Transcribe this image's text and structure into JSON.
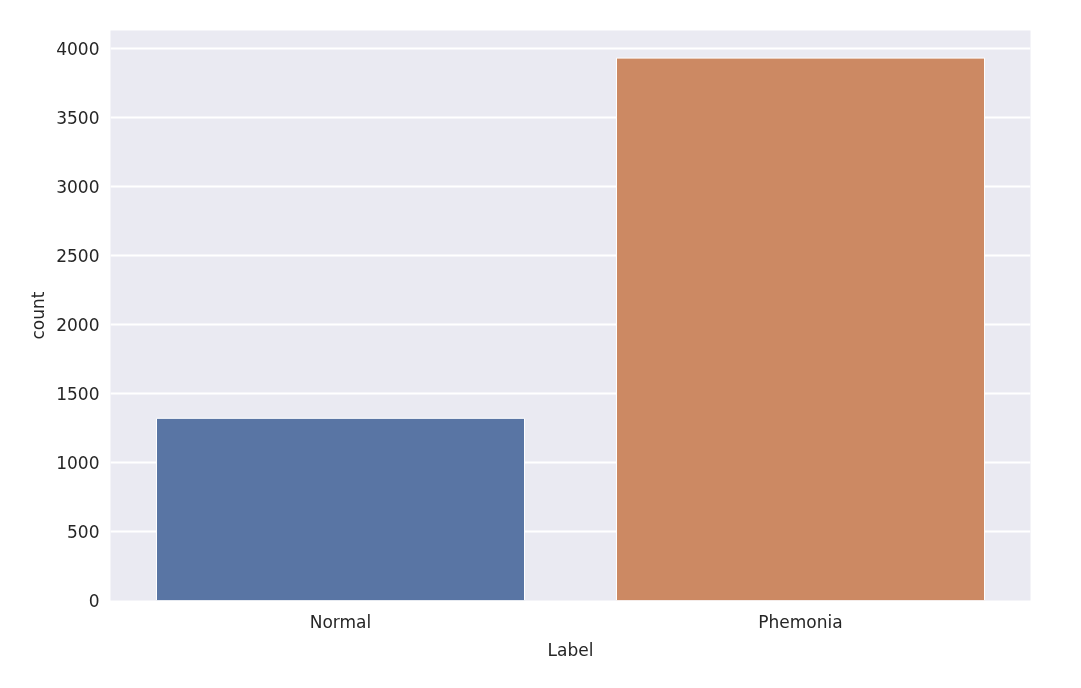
{
  "chart_data": {
    "type": "bar",
    "xlabel": "Label",
    "ylabel": "count",
    "categories": [
      "Normal",
      "Phemonia"
    ],
    "values": [
      1320,
      3930
    ],
    "colors": [
      "#5975a4",
      "#cc8963"
    ],
    "ylim": [
      0,
      4130
    ],
    "yticks": [
      0,
      500,
      1000,
      1500,
      2000,
      2500,
      3000,
      3500,
      4000
    ],
    "grid": "y"
  }
}
